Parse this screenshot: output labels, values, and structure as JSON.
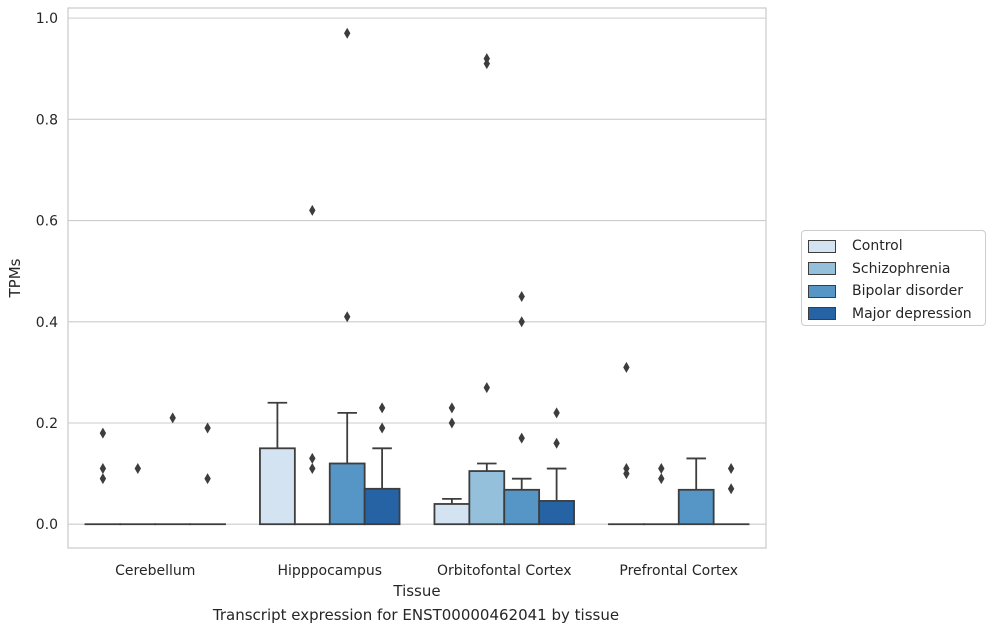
{
  "chart_data": {
    "type": "bar",
    "title": "",
    "caption": "Transcript expression for ENST00000462041 by tissue",
    "xlabel": "Tissue",
    "ylabel": "TPMs",
    "ylim": [
      -0.047,
      1.02
    ],
    "yticks": [
      0.0,
      0.2,
      0.4,
      0.6,
      0.8,
      1.0
    ],
    "ytick_labels": [
      "0.0",
      "0.2",
      "0.4",
      "0.6",
      "0.8",
      "1.0"
    ],
    "grid": true,
    "legend_position": "right",
    "categories": [
      "Cerebellum",
      "Hipppocampus",
      "Orbitofontal Cortex",
      "Prefrontal Cortex"
    ],
    "series": [
      {
        "name": "Control",
        "color": "#d4e3f2",
        "values": [
          0.0,
          0.15,
          0.04,
          0.0
        ],
        "error_upper": [
          0.0,
          0.24,
          0.05,
          0.0
        ],
        "outliers": [
          [
            0.18,
            0.11,
            0.09
          ],
          [],
          [
            0.23,
            0.2
          ],
          [
            0.31,
            0.11,
            0.1
          ]
        ]
      },
      {
        "name": "Schizophrenia",
        "color": "#95c0dc",
        "values": [
          0.0,
          0.0,
          0.105,
          0.0
        ],
        "error_upper": [
          0.0,
          0.0,
          0.12,
          0.0
        ],
        "outliers": [
          [
            0.11
          ],
          [
            0.62,
            0.13,
            0.11
          ],
          [
            0.92,
            0.91,
            0.27
          ],
          [
            0.11,
            0.09
          ]
        ]
      },
      {
        "name": "Bipolar disorder",
        "color": "#5596c6",
        "values": [
          0.0,
          0.12,
          0.068,
          0.068
        ],
        "error_upper": [
          0.0,
          0.22,
          0.09,
          0.13
        ],
        "outliers": [
          [
            0.21
          ],
          [
            0.97,
            0.41
          ],
          [
            0.45,
            0.4,
            0.17
          ],
          []
        ]
      },
      {
        "name": "Major depression",
        "color": "#2563a4",
        "values": [
          0.0,
          0.07,
          0.046,
          0.0
        ],
        "error_upper": [
          0.0,
          0.15,
          0.11,
          0.0
        ],
        "outliers": [
          [
            0.19,
            0.09
          ],
          [
            0.23,
            0.19
          ],
          [
            0.22,
            0.16
          ],
          [
            0.11,
            0.07
          ]
        ]
      }
    ]
  }
}
